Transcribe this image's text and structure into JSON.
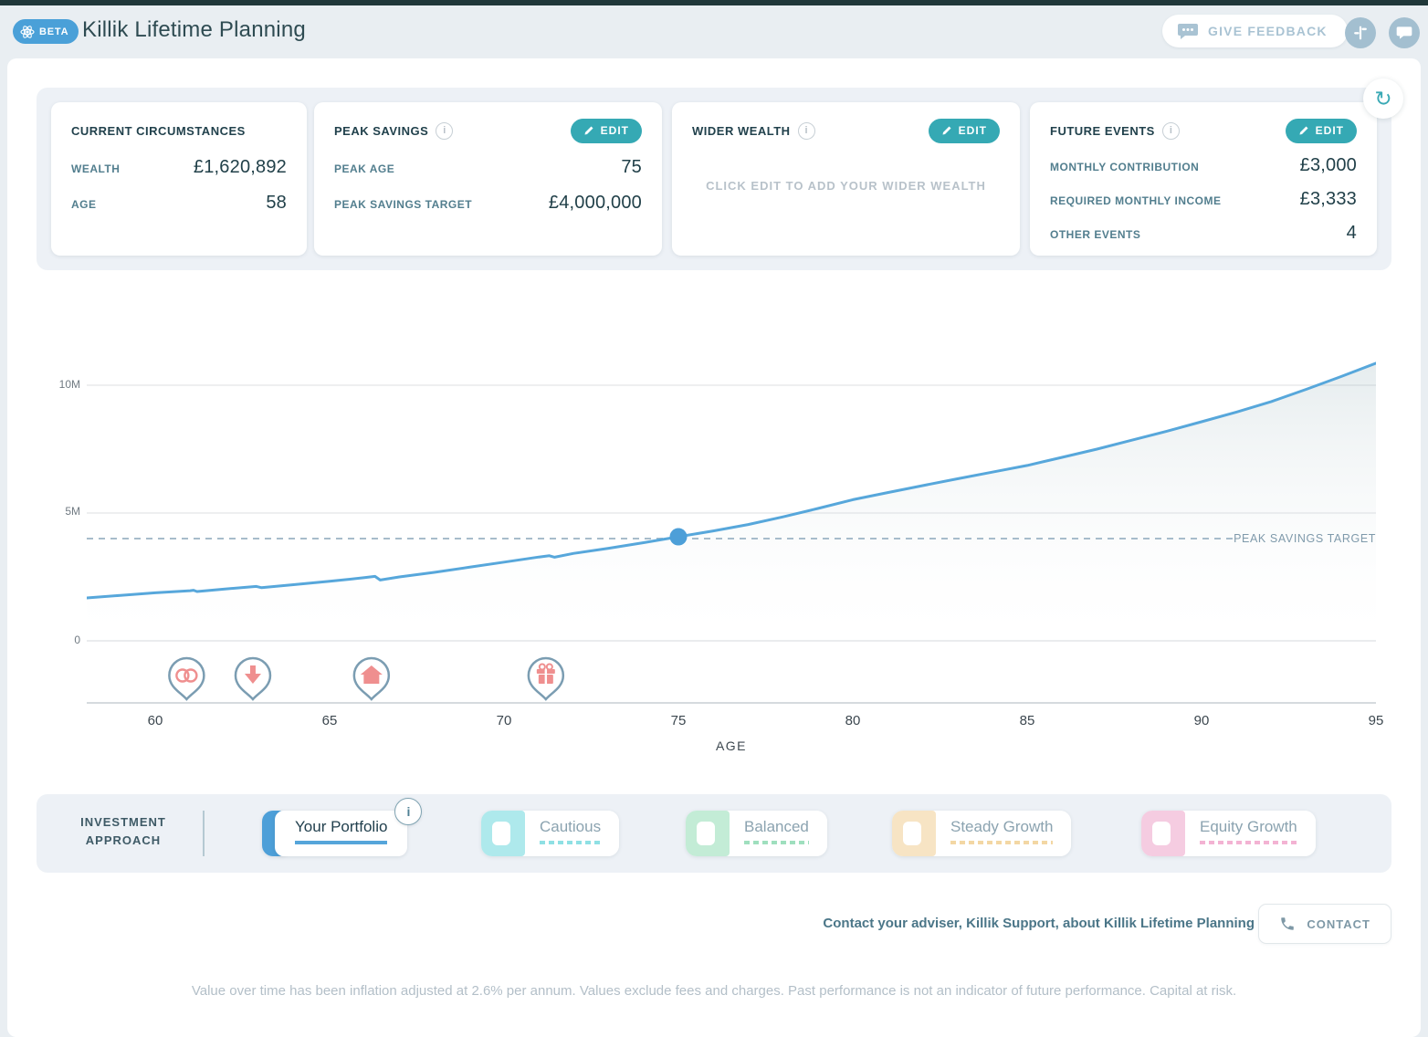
{
  "header": {
    "beta_label": "BETA",
    "title": "Killik Lifetime Planning",
    "feedback_label": "GIVE FEEDBACK"
  },
  "icons": {
    "info_glyph": "i",
    "refresh_glyph": "↻"
  },
  "cards": {
    "current_circumstances": {
      "title": "CURRENT CIRCUMSTANCES",
      "rows": [
        {
          "label": "WEALTH",
          "value": "£1,620,892"
        },
        {
          "label": "AGE",
          "value": "58"
        }
      ]
    },
    "peak_savings": {
      "title": "PEAK SAVINGS",
      "edit_label": "EDIT",
      "rows": [
        {
          "label": "PEAK AGE",
          "value": "75"
        },
        {
          "label": "PEAK SAVINGS TARGET",
          "value": "£4,000,000"
        }
      ]
    },
    "wider_wealth": {
      "title": "WIDER WEALTH",
      "edit_label": "EDIT",
      "placeholder": "CLICK EDIT TO ADD YOUR WIDER WEALTH"
    },
    "future_events": {
      "title": "FUTURE EVENTS",
      "edit_label": "EDIT",
      "rows": [
        {
          "label": "MONTHLY CONTRIBUTION",
          "value": "£3,000"
        },
        {
          "label": "REQUIRED MONTHLY INCOME",
          "value": "£3,333"
        },
        {
          "label": "OTHER EVENTS",
          "value": "4"
        }
      ]
    }
  },
  "chart_data": {
    "type": "area",
    "title": "",
    "xlabel": "AGE",
    "ylabel": "",
    "xlim": [
      58,
      95
    ],
    "ylim_millions": [
      0,
      11.2
    ],
    "grid": true,
    "legend": false,
    "x_ticks": [
      60,
      65,
      70,
      75,
      80,
      85,
      90,
      95
    ],
    "y_tick_labels": [
      "10M",
      "5M",
      "0"
    ],
    "y_tick_values_millions": [
      10,
      5,
      0
    ],
    "series": [
      {
        "name": "Your Portfolio",
        "x": [
          58,
          59,
          60,
          61,
          61.1,
          61.2,
          62,
          62.9,
          63.05,
          64,
          65,
          66,
          66.3,
          66.45,
          67,
          68,
          69,
          70,
          71,
          71.3,
          71.45,
          72,
          73,
          74,
          75,
          76,
          77,
          78,
          79,
          80,
          81,
          82,
          83,
          84,
          85,
          86,
          87,
          88,
          89,
          90,
          91,
          92,
          93,
          94,
          95
        ],
        "y_millions": [
          1.68,
          1.78,
          1.88,
          1.96,
          1.98,
          1.93,
          2.03,
          2.13,
          2.08,
          2.2,
          2.33,
          2.47,
          2.52,
          2.38,
          2.5,
          2.68,
          2.88,
          3.08,
          3.28,
          3.33,
          3.27,
          3.42,
          3.62,
          3.84,
          4.07,
          4.3,
          4.55,
          4.85,
          5.18,
          5.52,
          5.8,
          6.07,
          6.34,
          6.6,
          6.86,
          7.18,
          7.5,
          7.85,
          8.2,
          8.57,
          8.95,
          9.36,
          9.84,
          10.34,
          10.86
        ]
      }
    ],
    "target_line": {
      "value_millions": 4,
      "label": "PEAK SAVINGS TARGET"
    },
    "marker_point": {
      "age": 75,
      "value_millions": 4.07
    },
    "events": [
      {
        "age": 60.9,
        "icon": "rings-icon"
      },
      {
        "age": 62.8,
        "icon": "arrow-down-icon"
      },
      {
        "age": 66.2,
        "icon": "house-icon"
      },
      {
        "age": 71.2,
        "icon": "gift-icon"
      }
    ],
    "colors": {
      "line": "#57a7db",
      "dot": "#4d9fd8",
      "target_dash": "#a7bccb",
      "pin_outline": "#7b9db2",
      "pin_icon": "#ef8f8f"
    }
  },
  "investment": {
    "label_line1": "INVESTMENT",
    "label_line2": "APPROACH",
    "options": [
      {
        "label": "Your Portfolio",
        "selected": true,
        "swatch_color": "#4d9fd8",
        "underline_color": "#55a5da"
      },
      {
        "label": "Cautious",
        "selected": false,
        "swatch_color": "#aee9ec",
        "underline_color": "#8fe0e4"
      },
      {
        "label": "Balanced",
        "selected": false,
        "swatch_color": "#c3ecd6",
        "underline_color": "#9fdfbe"
      },
      {
        "label": "Steady Growth",
        "selected": false,
        "swatch_color": "#f7e4c4",
        "underline_color": "#f3d7a4"
      },
      {
        "label": "Equity Growth",
        "selected": false,
        "swatch_color": "#f5cce1",
        "underline_color": "#f3b3d3"
      }
    ]
  },
  "footer": {
    "contact_text": "Contact your adviser, Killik Support, about Killik Lifetime Planning",
    "contact_button": "CONTACT",
    "disclaimer": "Value over time has been inflation adjusted at 2.6% per annum. Values exclude fees and charges. Past performance is not an indicator of future performance. Capital at risk."
  }
}
